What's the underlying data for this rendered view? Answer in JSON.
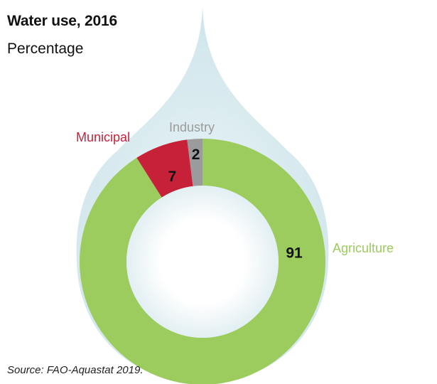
{
  "title": "Water use, 2016",
  "subtitle": "Percentage",
  "source": "Source: FAO-Aquastat 2019.",
  "colors": {
    "background": "#ffffff",
    "drop": "#d3e7ec",
    "drop_inner": "#f2f8fa",
    "hole": "#ffffff",
    "value_text": "#111111"
  },
  "chart_data": {
    "type": "pie",
    "title": "Water use, 2016",
    "subtitle": "Percentage",
    "categories": [
      "Agriculture",
      "Municipal",
      "Industry"
    ],
    "values": [
      91,
      7,
      2
    ],
    "value_labels": [
      "91",
      "7",
      "2"
    ],
    "colors": [
      "#9ccc5e",
      "#c7213a",
      "#9b9b9b"
    ],
    "donut": true,
    "legend": "labels next to slices"
  }
}
